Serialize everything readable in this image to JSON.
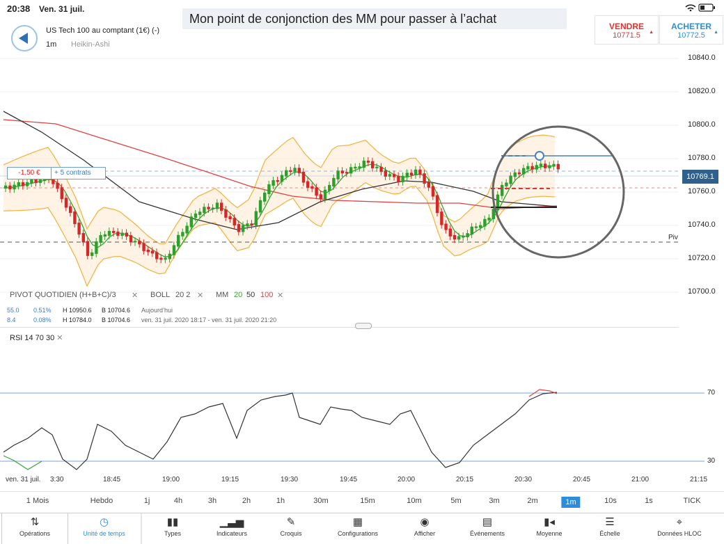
{
  "status_bar": {
    "time": "20:38",
    "date": "Ven. 31 juil.",
    "icons": "wifi battery"
  },
  "annotation": "Mon point de conjonction des MM pour passer à l’achat",
  "header": {
    "instrument": "US Tech 100 au comptant (1€) (-)",
    "timeframe": "1m",
    "chart_type": "Heikin-Ashi"
  },
  "trade": {
    "sell": {
      "label": "VENDRE",
      "price": "10771.5"
    },
    "buy": {
      "label": "ACHETER",
      "price": "10772.5"
    }
  },
  "position": {
    "pnl": "-1,50 €",
    "contracts": "+ 5 contrats"
  },
  "price_axis": [
    "10840.0",
    "10820.0",
    "10800.0",
    "10780.0",
    "10760.0",
    "10740.0",
    "10720.0",
    "10700.0"
  ],
  "last_price": "10769.1",
  "pivot_label": "Piv",
  "indicators": {
    "pivot": "PIVOT  QUOTIDIEN  (H+B+C)/3",
    "boll_label": "BOLL",
    "boll_params": "20  2",
    "mm_label": "MM",
    "mm_20": "20",
    "mm_50": "50",
    "mm_100": "100"
  },
  "info_rows": [
    {
      "a": "55.0",
      "b": "0.51%",
      "h": "H 10950.6",
      "l": "B 10704.6",
      "period": "Aujourd’hui"
    },
    {
      "a": "8.4",
      "b": "0.08%",
      "h": "H 10784.0",
      "l": "B 10704.6",
      "period": "ven. 31 juil. 2020 18:17 - ven. 31 juil. 2020 21:20"
    }
  ],
  "rsi": {
    "label": "RSI  14  70  30",
    "levels": [
      "70",
      "30"
    ]
  },
  "time_axis": [
    "ven. 31 juil.",
    "3:30",
    "18:45",
    "19:00",
    "19:15",
    "19:30",
    "19:45",
    "20:00",
    "20:15",
    "20:30",
    "20:45",
    "21:00",
    "21:15"
  ],
  "periods": [
    "1 Mois",
    "Hebdo",
    "1j",
    "4h",
    "3h",
    "2h",
    "1h",
    "30m",
    "15m",
    "10m",
    "5m",
    "3m",
    "2m",
    "1m",
    "10s",
    "1s",
    "TICK"
  ],
  "active_period": "1m",
  "toolbar": [
    "Opérations",
    "Unité de temps",
    "Types",
    "Indicateurs",
    "Croquis",
    "Configurations",
    "Afficher",
    "Événements",
    "Moyenne",
    "Échelle",
    "Données HLOC"
  ],
  "colors": {
    "up": "#2ca02c",
    "down": "#d62728",
    "accent": "#2e8ddb",
    "boll": "#f2b13a",
    "mm20": "#35a535",
    "mm50": "#333333",
    "mm100": "#e04040"
  }
}
